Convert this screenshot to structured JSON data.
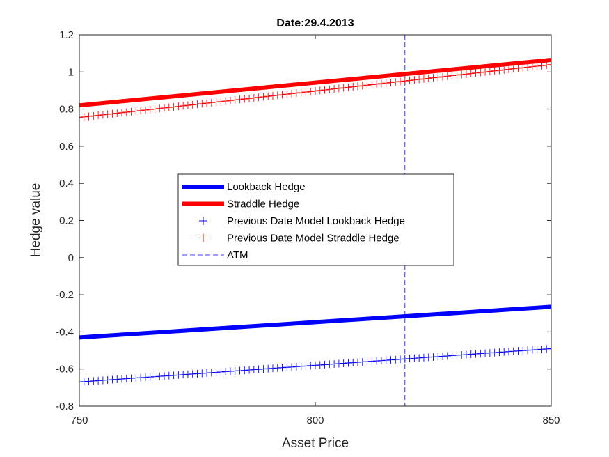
{
  "chart_data": {
    "type": "line",
    "title": "Date:29.4.2013",
    "xlabel": "Asset Price",
    "ylabel": "Hedge value",
    "xlim": [
      750,
      850
    ],
    "ylim": [
      -0.8,
      1.2
    ],
    "xticks": [
      750,
      800,
      850
    ],
    "yticks": [
      -0.8,
      -0.6,
      -0.4,
      -0.2,
      0,
      0.2,
      0.4,
      0.6,
      0.8,
      1,
      1.2
    ],
    "xtick_labels": [
      "750",
      "800",
      "850"
    ],
    "ytick_labels": [
      "-0.8",
      "-0.6",
      "-0.4",
      "-0.2",
      "0",
      "0.2",
      "0.4",
      "0.6",
      "0.8",
      "1",
      "1.2"
    ],
    "grid": false,
    "legend_position": "center",
    "series": [
      {
        "name": "Lookback Hedge",
        "style": "solid-thick",
        "color": "#0000ff",
        "x": [
          750,
          850
        ],
        "values": [
          -0.43,
          -0.265
        ]
      },
      {
        "name": "Straddle Hedge",
        "style": "solid-thick",
        "color": "#ff0000",
        "x": [
          750,
          850
        ],
        "values": [
          0.82,
          1.065
        ]
      },
      {
        "name": "Previous Date Model Lookback Hedge",
        "style": "plus-markers",
        "color": "#0000ff",
        "x": [
          750,
          850
        ],
        "values": [
          -0.67,
          -0.49
        ],
        "marker_count": 101
      },
      {
        "name": "Previous Date Model Straddle Hedge",
        "style": "plus-markers",
        "color": "#ff0000",
        "x": [
          750,
          850
        ],
        "values": [
          0.755,
          1.04
        ],
        "marker_count": 101
      },
      {
        "name": "ATM",
        "style": "dashed-vertical",
        "color": "#0000ff",
        "x_value": 819
      }
    ]
  }
}
